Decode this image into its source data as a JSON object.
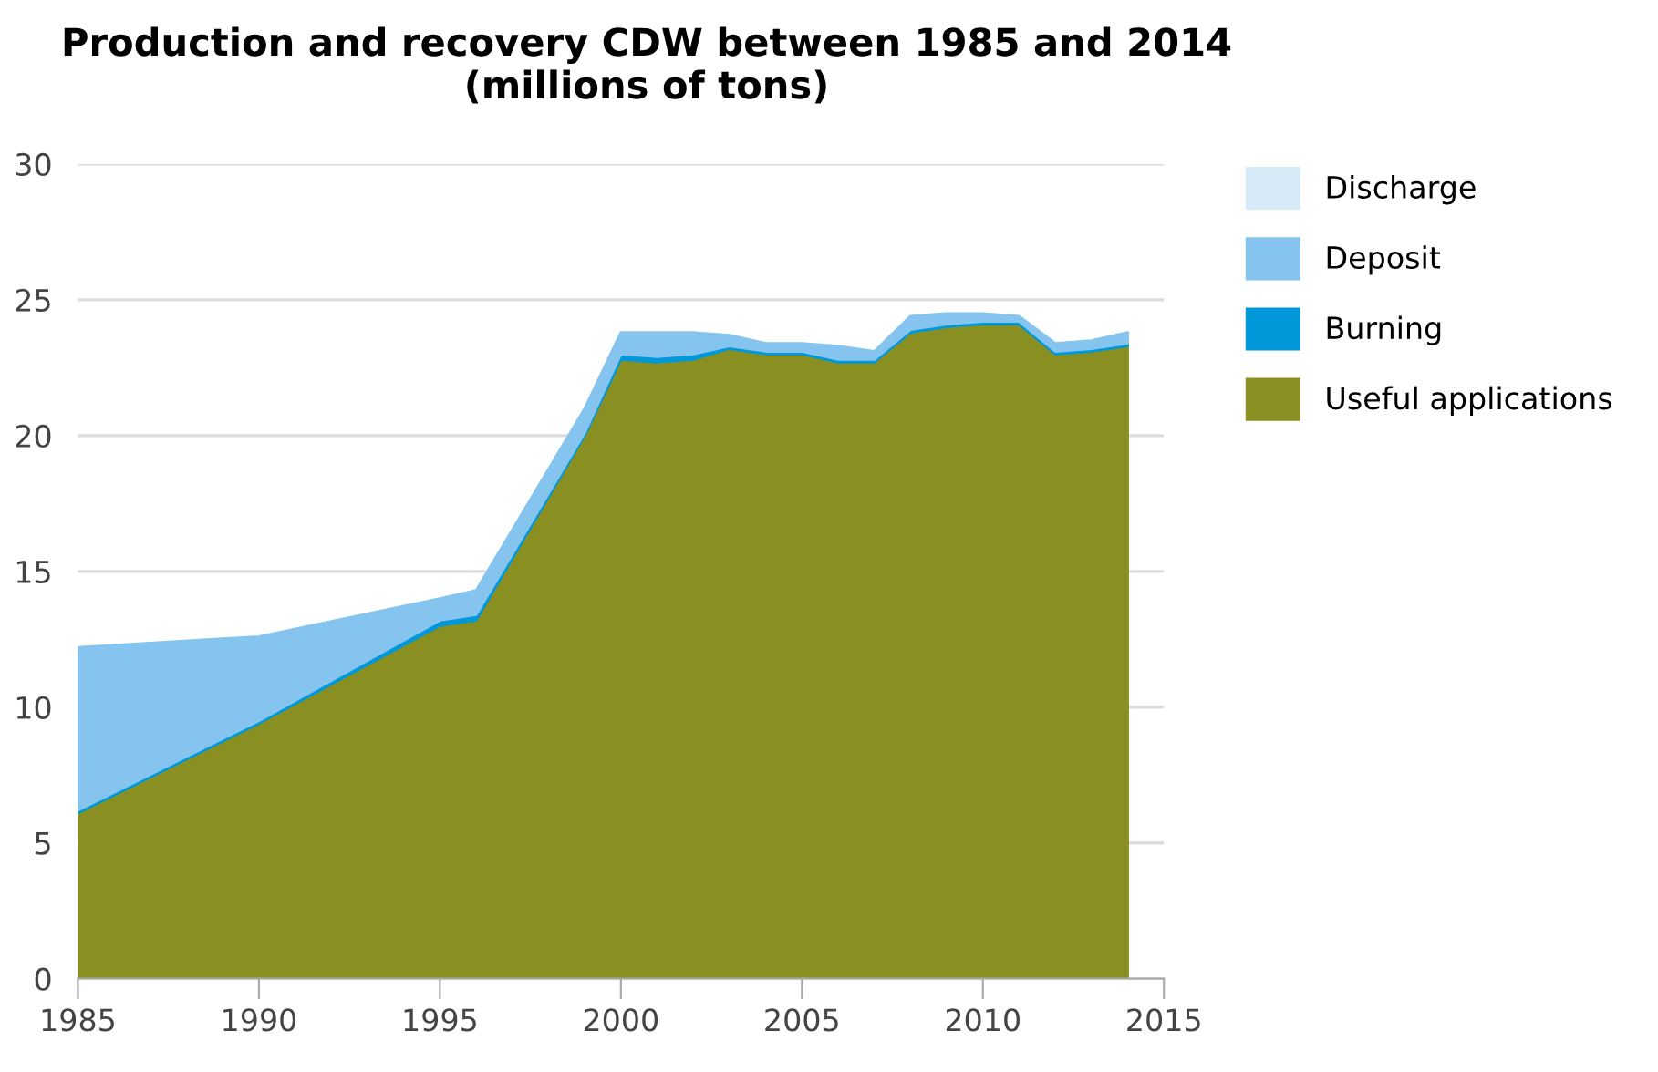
{
  "chart_data": {
    "type": "area",
    "stacked": true,
    "title": "Production and recovery CDW between 1985 and 2014 (millions of tons)",
    "x": [
      1985,
      1990,
      1995,
      1996,
      1999,
      2000,
      2001,
      2002,
      2003,
      2004,
      2005,
      2006,
      2007,
      2008,
      2009,
      2010,
      2011,
      2012,
      2013,
      2014
    ],
    "series": [
      {
        "name": "Useful applications",
        "color": "#8a8f22",
        "values": [
          6.1,
          9.4,
          13.0,
          13.2,
          20.0,
          22.8,
          22.7,
          22.8,
          23.2,
          23.0,
          23.0,
          22.7,
          22.7,
          23.8,
          24.0,
          24.1,
          24.1,
          23.0,
          23.1,
          23.3
        ]
      },
      {
        "name": "Burning",
        "color": "#0098d8",
        "values": [
          0.1,
          0.1,
          0.2,
          0.2,
          0.1,
          0.2,
          0.2,
          0.2,
          0.1,
          0.1,
          0.1,
          0.1,
          0.1,
          0.1,
          0.1,
          0.1,
          0.1,
          0.1,
          0.1,
          0.1
        ]
      },
      {
        "name": "Deposit",
        "color": "#85c4ee",
        "values": [
          6.0,
          3.1,
          0.8,
          0.9,
          0.9,
          0.8,
          0.9,
          0.8,
          0.4,
          0.3,
          0.3,
          0.5,
          0.3,
          0.5,
          0.4,
          0.3,
          0.2,
          0.3,
          0.3,
          0.4
        ]
      },
      {
        "name": "Discharge",
        "color": "#d6eaf8",
        "values": [
          null,
          null,
          null,
          null,
          null,
          null,
          null,
          null,
          null,
          null,
          null,
          null,
          null,
          null,
          null,
          null,
          null,
          null,
          null,
          null
        ]
      }
    ],
    "xlim": [
      1985,
      2015
    ],
    "xticks": [
      1985,
      1990,
      1995,
      2000,
      2005,
      2010,
      2015
    ],
    "ylim": [
      0,
      30
    ],
    "yticks": [
      0,
      5,
      10,
      15,
      20,
      25,
      30
    ],
    "grid": "y",
    "legend": "right"
  }
}
